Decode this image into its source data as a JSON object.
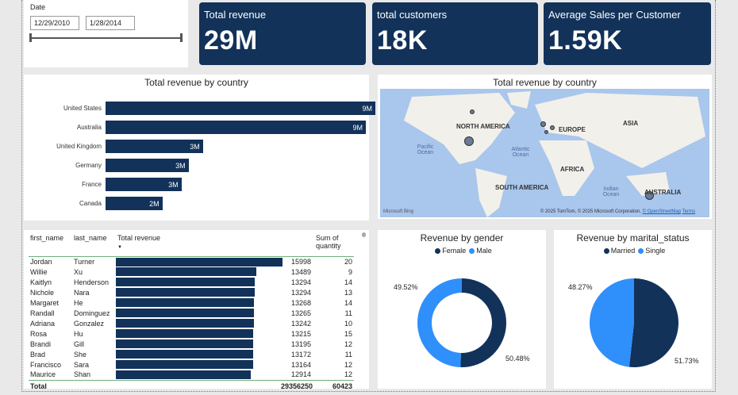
{
  "slicer": {
    "label": "Date",
    "start": "12/29/2010",
    "end": "1/28/2014"
  },
  "kpis": [
    {
      "title": "Total revenue",
      "value": "29M"
    },
    {
      "title": "total customers",
      "value": "18K"
    },
    {
      "title": "Average Sales per Customer",
      "value": "1.59K"
    }
  ],
  "bar_chart": {
    "title": "Total revenue by country",
    "categories": [
      "United States",
      "Australia",
      "United Kingdom",
      "Germany",
      "France",
      "Canada"
    ],
    "values": [
      9.39,
      9.06,
      3.39,
      2.89,
      2.64,
      1.98
    ],
    "labels": [
      "9M",
      "9M",
      "3M",
      "3M",
      "3M",
      "2M"
    ],
    "color": "#12325a"
  },
  "map": {
    "title": "Total revenue by country",
    "labels": {
      "na": "NORTH AMERICA",
      "eu": "EUROPE",
      "asia": "ASIA",
      "africa": "AFRICA",
      "sa": "SOUTH AMERICA",
      "au": "AUSTRALIA",
      "pacific": "Pacific Ocean",
      "atlantic": "Atlantic Ocean",
      "indian": "Indian Ocean"
    },
    "logo": "Microsoft Bing",
    "attribution": "© 2025 TomTom, © 2025 Microsoft Corporation,",
    "osm": "© OpenStreetMap",
    "terms": "Terms"
  },
  "table": {
    "headers": [
      "first_name",
      "last_name",
      "Total revenue",
      "Sum of quantity"
    ],
    "rows": [
      [
        "Jordan",
        "Turner",
        "15998",
        "20"
      ],
      [
        "Willie",
        "Xu",
        "13489",
        "9"
      ],
      [
        "Kaitlyn",
        "Henderson",
        "13294",
        "14"
      ],
      [
        "Nichole",
        "Nara",
        "13294",
        "13"
      ],
      [
        "Margaret",
        "He",
        "13268",
        "14"
      ],
      [
        "Randall",
        "Dominguez",
        "13265",
        "11"
      ],
      [
        "Adriana",
        "Gonzalez",
        "13242",
        "10"
      ],
      [
        "Rosa",
        "Hu",
        "13215",
        "15"
      ],
      [
        "Brandi",
        "Gill",
        "13195",
        "12"
      ],
      [
        "Brad",
        "She",
        "13172",
        "11"
      ],
      [
        "Francisco",
        "Sara",
        "13164",
        "12"
      ],
      [
        "Maurice",
        "Shan",
        "12914",
        "12"
      ]
    ],
    "total": {
      "label": "Total",
      "revenue": "29356250",
      "quantity": "60423"
    }
  },
  "gender": {
    "title": "Revenue by gender",
    "legend": [
      "Female",
      "Male"
    ],
    "values": [
      50.48,
      49.52
    ],
    "labels": [
      "50.48%",
      "49.52%"
    ],
    "colors": [
      "#12325a",
      "#2f8ffb"
    ]
  },
  "marital": {
    "title": "Revenue by marital_status",
    "legend": [
      "Married",
      "Single"
    ],
    "values": [
      51.73,
      48.27
    ],
    "labels": [
      "51.73%",
      "48.27%"
    ],
    "colors": [
      "#12325a",
      "#2f8ffb"
    ]
  }
}
